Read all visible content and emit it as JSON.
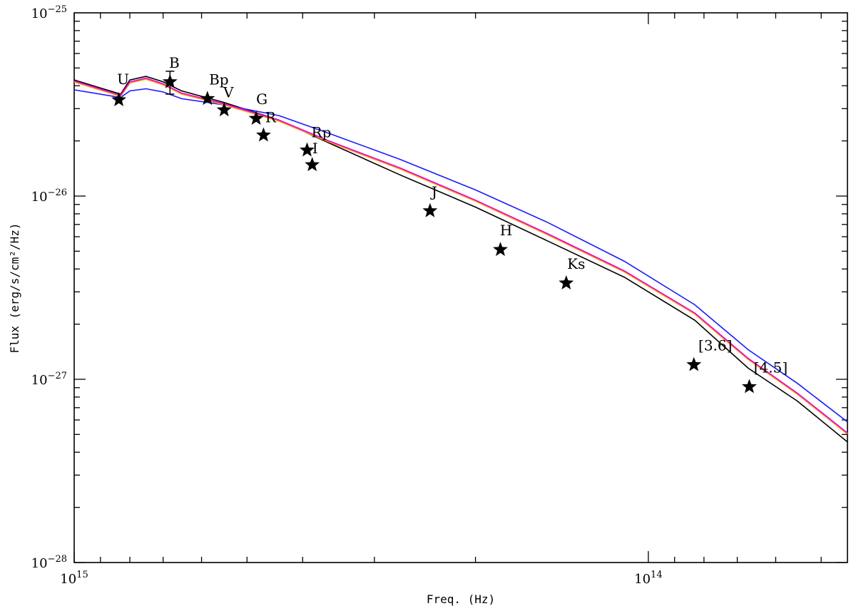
{
  "chart_data": {
    "type": "line",
    "title": "",
    "xlabel": "Freq. (Hz)",
    "ylabel": "Flux (erg/s/cm²/Hz)",
    "x_scale": "log",
    "y_scale": "log",
    "x_reversed": true,
    "xlim": [
      1000000000000000.0,
      45000000000000.0
    ],
    "ylim": [
      1e-28,
      1e-25
    ],
    "x_ticks": [
      {
        "base": "10",
        "exp": "15",
        "value": 1000000000000000.0
      },
      {
        "base": "10",
        "exp": "14",
        "value": 100000000000000.0
      }
    ],
    "y_ticks": [
      {
        "base": "10",
        "exp": "−25",
        "value": 1e-25
      },
      {
        "base": "10",
        "exp": "−26",
        "value": 1e-26
      },
      {
        "base": "10",
        "exp": "−27",
        "value": 1e-27
      },
      {
        "base": "10",
        "exp": "−28",
        "value": 1e-28
      }
    ],
    "grid": false,
    "colors": {
      "black": "#000000",
      "blue": "#1a1aff",
      "magenta": "#e600e6",
      "orange": "#ff9a00"
    },
    "series": [
      {
        "color": "black",
        "points": [
          [
            1000000000000000.0,
            4.3e-26
          ],
          [
            830000000000000.0,
            3.6e-26
          ],
          [
            800000000000000.0,
            4.3e-26
          ],
          [
            750000000000000.0,
            4.5e-26
          ],
          [
            700000000000000.0,
            4.2e-26
          ],
          [
            650000000000000.0,
            3.75e-26
          ],
          [
            550000000000000.0,
            3.25e-26
          ],
          [
            440000000000000.0,
            2.6e-26
          ],
          [
            360000000000000.0,
            1.95e-26
          ],
          [
            270000000000000.0,
            1.3e-26
          ],
          [
            200000000000000.0,
            8.7e-27
          ],
          [
            150000000000000.0,
            5.7e-27
          ],
          [
            110000000000000.0,
            3.6e-27
          ],
          [
            83000000000000.0,
            2.1e-27
          ],
          [
            67000000000000.0,
            1.15e-27
          ],
          [
            55000000000000.0,
            7.6e-28
          ],
          [
            45000000000000.0,
            4.55e-28
          ]
        ]
      },
      {
        "color": "blue",
        "points": [
          [
            1000000000000000.0,
            3.8e-26
          ],
          [
            830000000000000.0,
            3.45e-26
          ],
          [
            800000000000000.0,
            3.75e-26
          ],
          [
            750000000000000.0,
            3.85e-26
          ],
          [
            700000000000000.0,
            3.7e-26
          ],
          [
            650000000000000.0,
            3.4e-26
          ],
          [
            550000000000000.0,
            3.15e-26
          ],
          [
            440000000000000.0,
            2.75e-26
          ],
          [
            360000000000000.0,
            2.2e-26
          ],
          [
            270000000000000.0,
            1.58e-26
          ],
          [
            200000000000000.0,
            1.08e-26
          ],
          [
            150000000000000.0,
            7.2e-27
          ],
          [
            110000000000000.0,
            4.4e-27
          ],
          [
            83000000000000.0,
            2.55e-27
          ],
          [
            67000000000000.0,
            1.45e-27
          ],
          [
            55000000000000.0,
            9.5e-28
          ],
          [
            45000000000000.0,
            5.85e-28
          ]
        ]
      },
      {
        "color": "magenta",
        "points": [
          [
            1000000000000000.0,
            4.25e-26
          ],
          [
            830000000000000.0,
            3.55e-26
          ],
          [
            800000000000000.0,
            4.2e-26
          ],
          [
            750000000000000.0,
            4.4e-26
          ],
          [
            700000000000000.0,
            4.1e-26
          ],
          [
            650000000000000.0,
            3.65e-26
          ],
          [
            550000000000000.0,
            3.2e-26
          ],
          [
            440000000000000.0,
            2.6e-26
          ],
          [
            360000000000000.0,
            2e-26
          ],
          [
            270000000000000.0,
            1.42e-26
          ],
          [
            200000000000000.0,
            9.5e-27
          ],
          [
            150000000000000.0,
            6.25e-27
          ],
          [
            110000000000000.0,
            3.9e-27
          ],
          [
            83000000000000.0,
            2.3e-27
          ],
          [
            67000000000000.0,
            1.3e-27
          ],
          [
            55000000000000.0,
            8.4e-28
          ],
          [
            45000000000000.0,
            5.1e-28
          ]
        ]
      }
    ],
    "photometry": [
      {
        "label": "U",
        "freq": 836000000000000.0,
        "flux": 3.35e-26
      },
      {
        "label": "B",
        "freq": 681000000000000.0,
        "flux": 4.2e-26,
        "err": 6e-27
      },
      {
        "label": "Bp",
        "freq": 586000000000000.0,
        "flux": 3.4e-26
      },
      {
        "label": "V",
        "freq": 548000000000000.0,
        "flux": 2.95e-26
      },
      {
        "label": "G",
        "freq": 482000000000000.0,
        "flux": 2.65e-26
      },
      {
        "label": "R",
        "freq": 468000000000000.0,
        "flux": 2.15e-26
      },
      {
        "label": "Rp",
        "freq": 393000000000000.0,
        "flux": 1.78e-26
      },
      {
        "label": "I",
        "freq": 385000000000000.0,
        "flux": 1.48e-26
      },
      {
        "label": "J",
        "freq": 240000000000000.0,
        "flux": 8.3e-27
      },
      {
        "label": "H",
        "freq": 181000000000000.0,
        "flux": 5.1e-27
      },
      {
        "label": "Ks",
        "freq": 139000000000000.0,
        "flux": 3.35e-27
      },
      {
        "label": "[3.6]",
        "freq": 83300000000000.0,
        "flux": 1.2e-27
      },
      {
        "label": "[4.5]",
        "freq": 66700000000000.0,
        "flux": 9.1e-28
      }
    ]
  }
}
